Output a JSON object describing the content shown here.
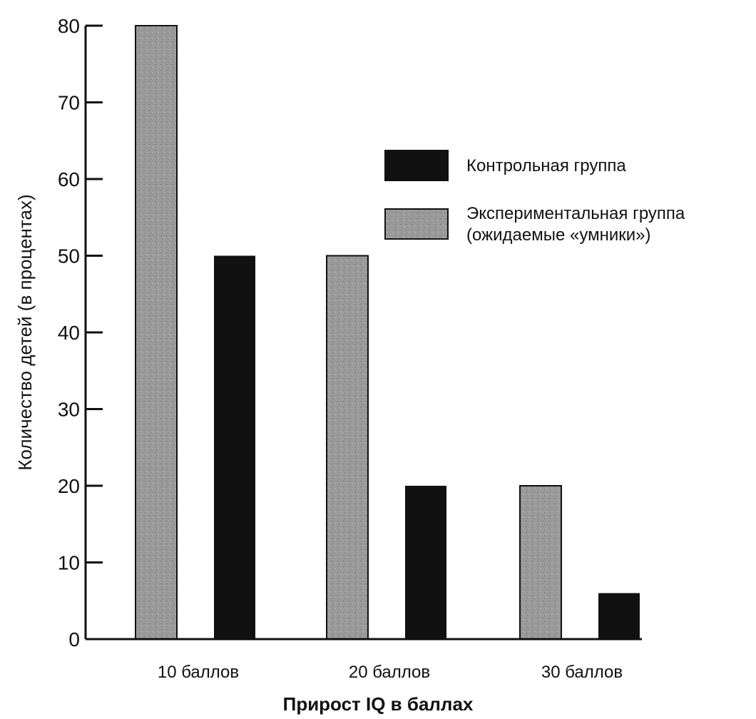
{
  "chart_data": {
    "type": "bar",
    "categories": [
      "10 баллов",
      "20 баллов",
      "30 баллов"
    ],
    "series": [
      {
        "name": "Экспериментальная группа (ожидаемые «умники»)",
        "values": [
          80,
          50,
          20
        ],
        "color": "#9a9a9a"
      },
      {
        "name": "Контрольная группа",
        "values": [
          50,
          20,
          6
        ],
        "color": "#111111"
      }
    ],
    "legend": {
      "placement": "top-right",
      "items": [
        {
          "lines": [
            "Контрольная группа"
          ],
          "color": "#111111"
        },
        {
          "lines": [
            "Экспериментальная группа",
            "(ожидаемые «умники»)"
          ],
          "color": "#9a9a9a"
        }
      ]
    },
    "xlabel": "Прирост IQ в баллах",
    "ylabel": "Количество детей (в процентах)",
    "ylim": [
      0,
      80
    ],
    "yticks": [
      0,
      10,
      20,
      30,
      40,
      50,
      60,
      70,
      80
    ],
    "grid": false
  }
}
